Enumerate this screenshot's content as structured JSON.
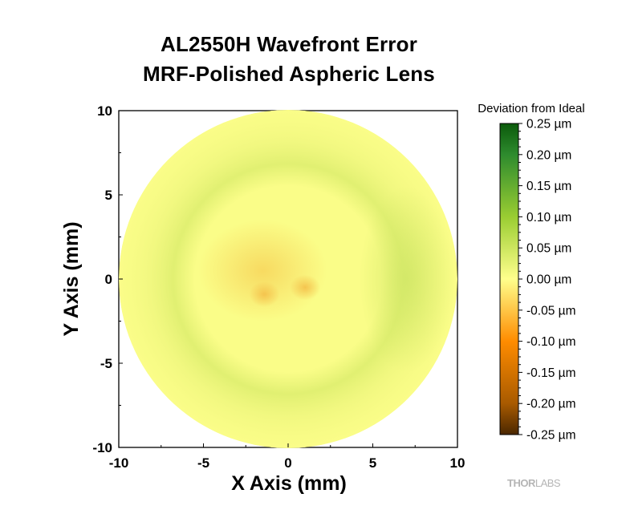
{
  "chart_data": {
    "type": "heatmap",
    "title": "AL2550H Wavefront Error",
    "subtitle": "MRF-Polished Aspheric Lens",
    "xlabel": "X Axis (mm)",
    "ylabel": "Y Axis (mm)",
    "xlim": [
      -10,
      10
    ],
    "ylim": [
      -10,
      10
    ],
    "x_ticks": [
      "-10",
      "-5",
      "0",
      "5",
      "10"
    ],
    "y_ticks": [
      "10",
      "5",
      "0",
      "-5",
      "-10"
    ],
    "aperture_radius_mm": 10,
    "colorbar": {
      "title": "Deviation from Ideal",
      "range": [
        -0.25,
        0.25
      ],
      "labels": [
        "0.25 µm",
        "0.20 µm",
        "0.15 µm",
        "0.10 µm",
        "0.05 µm",
        "0.00 µm",
        "-0.05 µm",
        "-0.10 µm",
        "-0.15 µm",
        "-0.20 µm",
        "-0.25 µm"
      ],
      "stops": [
        {
          "value": -0.25,
          "color": "#4a2700"
        },
        {
          "value": -0.2,
          "color": "#a85a00"
        },
        {
          "value": -0.1,
          "color": "#ff8c00"
        },
        {
          "value": 0.0,
          "color": "#ffff8c"
        },
        {
          "value": 0.1,
          "color": "#9acd32"
        },
        {
          "value": 0.2,
          "color": "#2e8b2e"
        },
        {
          "value": 0.25,
          "color": "#0b5a0b"
        }
      ]
    },
    "surface": {
      "background_deviation": 0.005,
      "features": [
        {
          "kind": "central_depression",
          "x": -1.5,
          "y": 0.5,
          "deviation": -0.02
        },
        {
          "kind": "local_low",
          "x": -1.4,
          "y": -0.9,
          "deviation": -0.035
        },
        {
          "kind": "local_low",
          "x": 1.0,
          "y": -0.5,
          "deviation": -0.03
        },
        {
          "kind": "ring_high",
          "radius": 6.5,
          "deviation": 0.02
        },
        {
          "kind": "ring_high_right_side",
          "x": 7.0,
          "y": 0.0,
          "deviation": 0.03
        }
      ]
    }
  },
  "watermark": {
    "bold": "THOR",
    "light": "LABS"
  }
}
